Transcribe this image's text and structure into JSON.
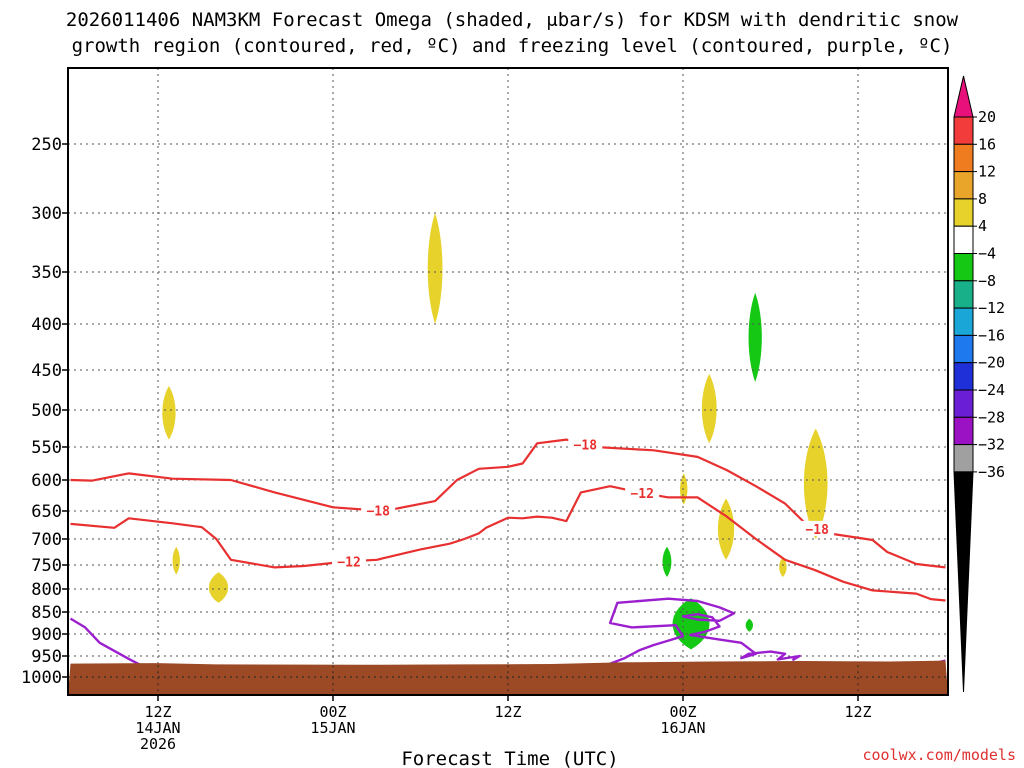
{
  "chart_data": {
    "type": "heatmap",
    "title_line1": "2026011406 NAM3KM Forecast Omega (shaded, μbar/s) for KDSM with dendritic snow",
    "title_line2": "growth region (contoured, red, ºC) and freezing level (contoured, purple, ºC)",
    "xlabel": "Forecast Time (UTC)",
    "ylabel": "",
    "credit": "coolwx.com/models",
    "y_axis": {
      "scale": "pressure (hPa), inverted",
      "ticks": [
        250,
        300,
        350,
        400,
        450,
        500,
        550,
        600,
        650,
        700,
        750,
        800,
        850,
        900,
        950,
        1000
      ]
    },
    "x_axis": {
      "range_hours": [
        0,
        60
      ],
      "ticks": [
        {
          "hour": 6,
          "label1": "12Z",
          "label2": "14JAN",
          "label3": "2026"
        },
        {
          "hour": 18,
          "label1": "00Z",
          "label2": "15JAN",
          "label3": ""
        },
        {
          "hour": 30,
          "label1": "12Z",
          "label2": "",
          "label3": ""
        },
        {
          "hour": 42,
          "label1": "00Z",
          "label2": "16JAN",
          "label3": ""
        },
        {
          "hour": 54,
          "label1": "12Z",
          "label2": "",
          "label3": ""
        }
      ]
    },
    "grid": true,
    "colorbar": {
      "levels": [
        "20",
        "16",
        "12",
        "8",
        "4",
        "−4",
        "−8",
        "−12",
        "−16",
        "−20",
        "−24",
        "−28",
        "−32",
        "−36"
      ],
      "colors": [
        "#e8107a",
        "#f23c3c",
        "#ef7d20",
        "#e8a52a",
        "#e6d22a",
        "#ffffff",
        "#14c814",
        "#17b088",
        "#1aa6d6",
        "#1e78ee",
        "#2030d8",
        "#6a1fd6",
        "#9a12c4",
        "#a0a0a0",
        "#000000"
      ]
    },
    "contours": [
      {
        "name": "-18",
        "color": "#e83030",
        "label_hours": [
          21.1,
          35.3,
          51.2
        ],
        "points": [
          [
            0,
            600
          ],
          [
            1.5,
            601
          ],
          [
            4,
            590
          ],
          [
            7,
            598
          ],
          [
            11,
            600
          ],
          [
            14,
            620
          ],
          [
            18,
            644
          ],
          [
            21.5,
            650
          ],
          [
            25,
            634
          ],
          [
            26.5,
            600
          ],
          [
            28,
            583
          ],
          [
            30,
            580
          ],
          [
            31,
            575
          ],
          [
            32,
            545
          ],
          [
            34,
            540
          ],
          [
            36,
            550
          ],
          [
            40,
            555
          ],
          [
            43,
            565
          ],
          [
            45,
            585
          ],
          [
            47,
            610
          ],
          [
            49,
            638
          ],
          [
            50.5,
            675
          ],
          [
            52,
            690
          ],
          [
            55,
            702
          ],
          [
            56,
            725
          ],
          [
            58,
            748
          ],
          [
            60,
            755
          ]
        ]
      },
      {
        "name": "-12",
        "color": "#e83030",
        "label_hours": [
          19.1,
          39.2
        ],
        "points": [
          [
            0,
            673
          ],
          [
            3,
            680
          ],
          [
            4,
            663
          ],
          [
            7,
            672
          ],
          [
            9,
            679
          ],
          [
            10,
            700
          ],
          [
            11,
            740
          ],
          [
            14,
            755
          ],
          [
            16,
            752
          ],
          [
            19,
            743
          ],
          [
            21,
            740
          ],
          [
            24,
            720
          ],
          [
            26,
            709
          ],
          [
            27,
            700
          ],
          [
            28,
            690
          ],
          [
            28.5,
            680
          ],
          [
            30,
            662
          ],
          [
            31,
            663
          ],
          [
            32,
            660
          ],
          [
            33,
            662
          ],
          [
            34,
            668
          ],
          [
            35,
            620
          ],
          [
            37,
            610
          ],
          [
            39,
            620
          ],
          [
            41,
            628
          ],
          [
            43,
            628
          ],
          [
            45,
            660
          ],
          [
            47,
            700
          ],
          [
            49,
            740
          ],
          [
            51,
            760
          ],
          [
            53,
            785
          ],
          [
            55,
            803
          ],
          [
            58,
            810
          ],
          [
            59,
            822
          ],
          [
            60,
            825
          ]
        ]
      }
    ],
    "freezing_level": {
      "color": "#9b1fcf",
      "segments": [
        [
          [
            0,
            865
          ],
          [
            1,
            885
          ],
          [
            2,
            920
          ],
          [
            4,
            957
          ],
          [
            5,
            975
          ]
        ],
        [
          [
            36.5,
            975
          ],
          [
            38,
            955
          ],
          [
            39,
            937
          ],
          [
            40,
            925
          ],
          [
            41,
            915
          ],
          [
            42,
            905
          ],
          [
            41.5,
            880
          ],
          [
            38.5,
            885
          ],
          [
            37,
            875
          ],
          [
            37.5,
            830
          ],
          [
            41,
            821
          ],
          [
            43,
            826
          ],
          [
            44.5,
            840
          ],
          [
            45.5,
            853
          ],
          [
            44.5,
            870
          ],
          [
            43,
            867
          ],
          [
            42,
            860
          ],
          [
            43,
            855
          ],
          [
            44,
            862
          ],
          [
            44.5,
            883
          ],
          [
            43.5,
            895
          ],
          [
            42.5,
            902
          ],
          [
            44,
            910
          ],
          [
            46,
            920
          ],
          [
            47,
            945
          ],
          [
            46,
            955
          ],
          [
            46.5,
            945
          ],
          [
            48,
            940
          ],
          [
            49,
            945
          ],
          [
            48.5,
            958
          ],
          [
            50,
            950
          ],
          [
            49.5,
            960
          ]
        ],
        [
          [
            59.5,
            965
          ],
          [
            60,
            961
          ]
        ]
      ]
    },
    "omega_areas": [
      {
        "value_class": "4",
        "color": "#e6d22a",
        "hour_range": [
          24.5,
          25.5
        ],
        "pressure_range": [
          300,
          400
        ]
      },
      {
        "value_class": "4",
        "color": "#e6d22a",
        "hour_range": [
          6.3,
          7.2
        ],
        "pressure_range": [
          470,
          540
        ]
      },
      {
        "value_class": "4",
        "color": "#e6d22a",
        "hour_range": [
          7.0,
          7.5
        ],
        "pressure_range": [
          715,
          770
        ]
      },
      {
        "value_class": "4",
        "color": "#e6d22a",
        "hour_range": [
          9.5,
          10.8
        ],
        "pressure_range": [
          765,
          830
        ]
      },
      {
        "value_class": "4",
        "color": "#e6d22a",
        "hour_range": [
          43.3,
          44.3
        ],
        "pressure_range": [
          455,
          545
        ]
      },
      {
        "value_class": "4",
        "color": "#e6d22a",
        "hour_range": [
          41.8,
          42.3
        ],
        "pressure_range": [
          590,
          640
        ]
      },
      {
        "value_class": "4",
        "color": "#e6d22a",
        "hour_range": [
          44.4,
          45.5
        ],
        "pressure_range": [
          630,
          740
        ]
      },
      {
        "value_class": "4",
        "color": "#e6d22a",
        "hour_range": [
          48.6,
          49.1
        ],
        "pressure_range": [
          735,
          775
        ]
      },
      {
        "value_class": "4",
        "color": "#e6d22a",
        "hour_range": [
          50.3,
          51.9
        ],
        "pressure_range": [
          525,
          700
        ]
      },
      {
        "value_class": "-4",
        "color": "#14c814",
        "hour_range": [
          46.5,
          47.4
        ],
        "pressure_range": [
          370,
          465
        ]
      },
      {
        "value_class": "-4",
        "color": "#14c814",
        "hour_range": [
          40.6,
          41.2
        ],
        "pressure_range": [
          715,
          775
        ]
      },
      {
        "value_class": "-4",
        "color": "#14c814",
        "hour_range": [
          41.3,
          43.8
        ],
        "pressure_range": [
          820,
          935
        ]
      },
      {
        "value_class": "-4",
        "color": "#14c814",
        "hour_range": [
          46.3,
          46.8
        ],
        "pressure_range": [
          865,
          895
        ]
      }
    ],
    "terrain": {
      "color": "#9b4a25"
    }
  }
}
